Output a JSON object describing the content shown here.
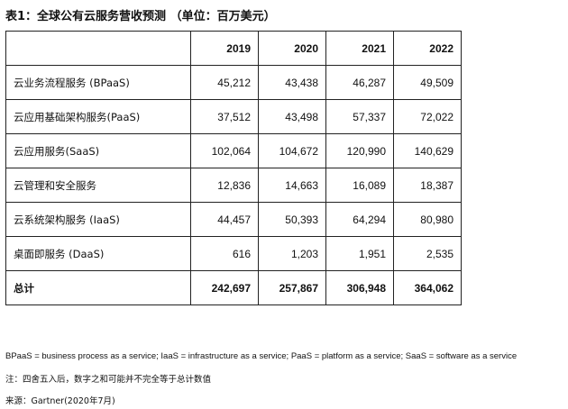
{
  "title": "表1：全球公有云服务营收预测 （单位：百万美元）",
  "table": {
    "headers": [
      "",
      "2019",
      "2020",
      "2021",
      "2022"
    ],
    "rows": [
      {
        "label": "云业务流程服务 (BPaaS)",
        "values": [
          "45,212",
          "43,438",
          "46,287",
          "49,509"
        ]
      },
      {
        "label": "云应用基础架构服务(PaaS)",
        "values": [
          "37,512",
          "43,498",
          "57,337",
          "72,022"
        ]
      },
      {
        "label": "云应用服务(SaaS)",
        "values": [
          "102,064",
          "104,672",
          "120,990",
          "140,629"
        ]
      },
      {
        "label": "云管理和安全服务",
        "values": [
          "12,836",
          "14,663",
          "16,089",
          "18,387"
        ]
      },
      {
        "label": "云系统架构服务 (IaaS)",
        "values": [
          "44,457",
          "50,393",
          "64,294",
          "80,980"
        ]
      },
      {
        "label": "桌面即服务 (DaaS)",
        "values": [
          "616",
          "1,203",
          "1,951",
          "2,535"
        ]
      }
    ],
    "total": {
      "label": "总计",
      "values": [
        "242,697",
        "257,867",
        "306,948",
        "364,062"
      ]
    }
  },
  "notes": {
    "abbreviations": "BPaaS = business process as a service; IaaS = infrastructure as a service; PaaS = platform as a service; SaaS = software as a service",
    "rounding": "注：四舍五入后，数字之和可能并不完全等于总计数值",
    "source": "来源：Gartner(2020年7月)"
  }
}
